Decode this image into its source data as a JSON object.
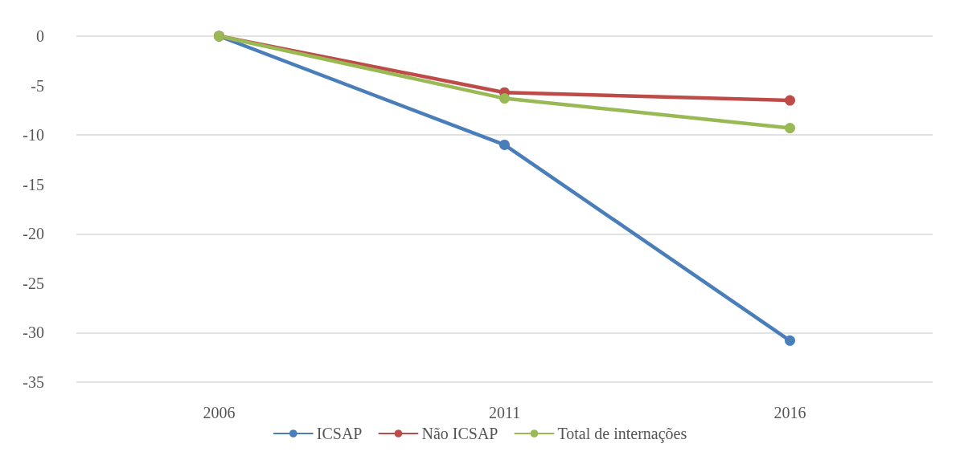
{
  "chart_data": {
    "type": "line",
    "categories": [
      "2006",
      "2011",
      "2016"
    ],
    "series": [
      {
        "name": "ICSAP",
        "color": "#4a7ebb",
        "values": [
          0,
          -11.0,
          -30.8
        ]
      },
      {
        "name": "Não ICSAP",
        "color": "#be4b48",
        "values": [
          0,
          -5.7,
          -6.5
        ]
      },
      {
        "name": "Total de internações",
        "color": "#98b954",
        "values": [
          0,
          -6.3,
          -9.3
        ]
      }
    ],
    "ylim": [
      -35,
      0
    ],
    "yticks": [
      0,
      -5,
      -10,
      -15,
      -20,
      -25,
      -30,
      -35
    ],
    "grid": "y",
    "legend": "bottom",
    "marker": "circle",
    "line_style": "solid"
  }
}
